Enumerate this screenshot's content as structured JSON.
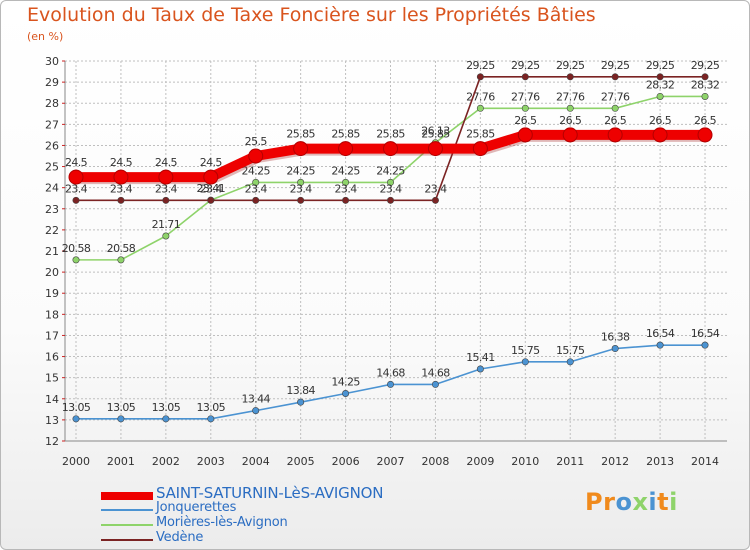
{
  "header": {
    "title": "Evolution du Taux de Taxe Foncière sur les Propriétés Bâties",
    "unit": "(en %)"
  },
  "colors": {
    "title": "#d9541e",
    "legend_text": "#2b6dc2",
    "grid": "#bfbfbf",
    "axis_text": "#333333"
  },
  "chart_data": {
    "type": "line",
    "title": "Evolution du Taux de Taxe Foncière sur les Propriétés Bâties",
    "ylabel": "(en %)",
    "xlabel": "",
    "ylim": [
      12,
      30
    ],
    "yticks": [
      12,
      13,
      14,
      15,
      16,
      17,
      18,
      19,
      20,
      21,
      22,
      23,
      24,
      25,
      26,
      27,
      28,
      29,
      30
    ],
    "grid": true,
    "legend_position": "bottom-left",
    "categories": [
      "2000",
      "2001",
      "2002",
      "2003",
      "2004",
      "2005",
      "2006",
      "2007",
      "2008",
      "2009",
      "2010",
      "2011",
      "2012",
      "2013",
      "2014"
    ],
    "series": [
      {
        "name": "SAINT-SATURNIN-LèS-AVIGNON",
        "color": "#ee0000",
        "values": [
          24.5,
          24.5,
          24.5,
          24.5,
          25.5,
          25.85,
          25.85,
          25.85,
          25.85,
          25.85,
          26.5,
          26.5,
          26.5,
          26.5,
          26.5
        ],
        "labels": [
          "24.5",
          "24.5",
          "24.5",
          "24.5",
          "25.5",
          "25.85",
          "25.85",
          "25.85",
          "25.85",
          "25.85",
          "26.5",
          "26.5",
          "26.5",
          "26.5",
          "26.5"
        ]
      },
      {
        "name": "Jonquerettes",
        "color": "#4b93d2",
        "values": [
          13.05,
          13.05,
          13.05,
          13.05,
          13.44,
          13.84,
          14.25,
          14.68,
          14.68,
          15.41,
          15.75,
          15.75,
          16.38,
          16.54,
          16.54
        ],
        "labels": [
          "13.05",
          "13.05",
          "13.05",
          "13.05",
          "13.44",
          "13.84",
          "14.25",
          "14.68",
          "14.68",
          "15.41",
          "15.75",
          "15.75",
          "16.38",
          "16.54",
          "16.54"
        ]
      },
      {
        "name": "Morières-lès-Avignon",
        "color": "#8ed36a",
        "values": [
          20.58,
          20.58,
          21.71,
          23.41,
          24.25,
          24.25,
          24.25,
          24.25,
          26.13,
          27.76,
          27.76,
          27.76,
          27.76,
          28.32,
          28.32
        ],
        "labels": [
          "20.58",
          "20.58",
          "21.71",
          "23.41",
          "24.25",
          "24.25",
          "24.25",
          "24.25",
          "26.13",
          "27.76",
          "27.76",
          "27.76",
          "27.76",
          "28.32",
          "28.32"
        ]
      },
      {
        "name": "Vedène",
        "color": "#7b2323",
        "values": [
          23.4,
          23.4,
          23.4,
          23.4,
          23.4,
          23.4,
          23.4,
          23.4,
          23.4,
          29.25,
          29.25,
          29.25,
          29.25,
          29.25,
          29.25
        ],
        "labels": [
          "23.4",
          "23.4",
          "23.4",
          "23.4",
          "23.4",
          "23.4",
          "23.4",
          "23.4",
          "23.4",
          "29.25",
          "29.25",
          "29.25",
          "29.25",
          "29.25",
          "29.25"
        ]
      }
    ]
  },
  "legend": {
    "items": [
      {
        "label": "SAINT-SATURNIN-LèS-AVIGNON",
        "color": "#ee0000"
      },
      {
        "label": "Jonquerettes",
        "color": "#4b93d2"
      },
      {
        "label": "Morières-lès-Avignon",
        "color": "#8ed36a"
      },
      {
        "label": "Vedène",
        "color": "#7b2323"
      }
    ]
  },
  "logo": {
    "text": "Proxiti",
    "letters": [
      {
        "ch": "P",
        "color": "#f08a1c"
      },
      {
        "ch": "r",
        "color": "#f08a1c"
      },
      {
        "ch": "o",
        "color": "#4b93d2"
      },
      {
        "ch": "x",
        "color": "#8ed36a"
      },
      {
        "ch": "i",
        "color": "#4b93d2"
      },
      {
        "ch": "t",
        "color": "#f08a1c"
      },
      {
        "ch": "i",
        "color": "#8ed36a"
      }
    ]
  }
}
